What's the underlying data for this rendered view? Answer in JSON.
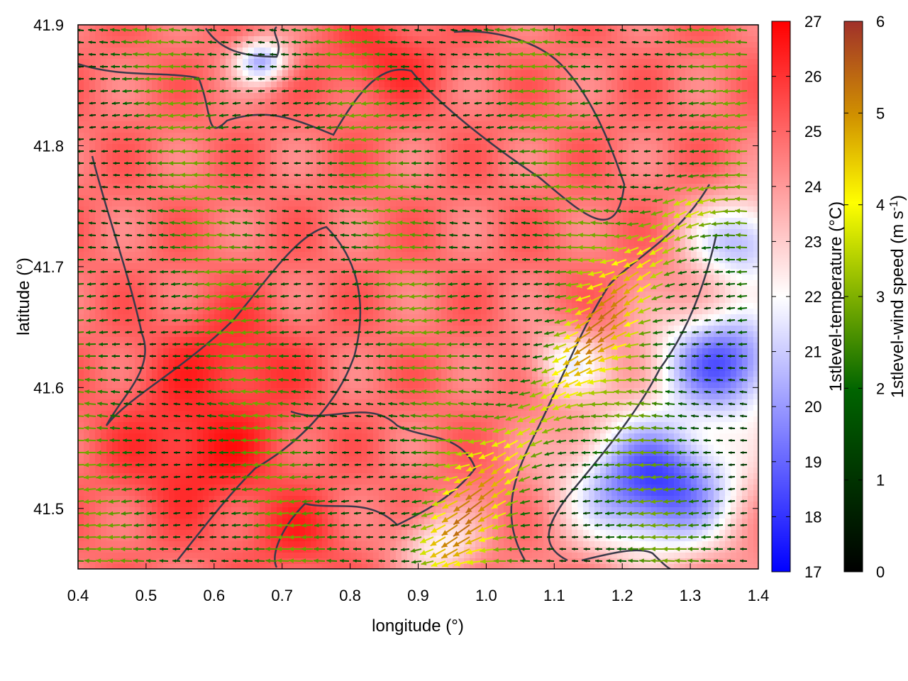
{
  "chart_data": {
    "type": "heatmap",
    "xlabel": "longitude (°)",
    "ylabel": "latitude (°)",
    "xlim": [
      0.4,
      1.4
    ],
    "ylim": [
      41.45,
      41.9
    ],
    "x_ticks": [
      "0.4",
      "0.5",
      "0.6",
      "0.7",
      "0.8",
      "0.9",
      "1.0",
      "1.1",
      "1.2",
      "1.3",
      "1.4"
    ],
    "y_ticks": [
      "41.5",
      "41.6",
      "41.7",
      "41.8",
      "41.9"
    ],
    "temperature_colorbar": {
      "label": "1stlevel-temperature (°C)",
      "range": [
        17,
        27
      ],
      "ticks": [
        "17",
        "18",
        "19",
        "20",
        "21",
        "22",
        "23",
        "24",
        "25",
        "26",
        "27"
      ],
      "colors": [
        "#0000ff",
        "#ffffff",
        "#ff0000"
      ]
    },
    "wind_colorbar": {
      "label_main": "1stlevel-wind speed (m s",
      "label_sup": "-1",
      "label_end": ")",
      "range": [
        0,
        6
      ],
      "ticks": [
        "0",
        "1",
        "2",
        "3",
        "4",
        "5",
        "6"
      ],
      "colors": [
        "#000000",
        "#006400",
        "#7fb000",
        "#ffff00",
        "#d09000",
        "#a0302a"
      ]
    },
    "temperature_regions": [
      {
        "lon": 0.58,
        "lat": 41.55,
        "value": 26.5,
        "spread": 0.12
      },
      {
        "lon": 0.62,
        "lat": 41.62,
        "value": 26.2,
        "spread": 0.1
      },
      {
        "lon": 0.85,
        "lat": 41.87,
        "value": 26.0,
        "spread": 0.08
      },
      {
        "lon": 0.72,
        "lat": 41.48,
        "value": 26.0,
        "spread": 0.07
      },
      {
        "lon": 1.25,
        "lat": 41.52,
        "value": 18.2,
        "spread": 0.12
      },
      {
        "lon": 1.35,
        "lat": 41.62,
        "value": 18.8,
        "spread": 0.1
      },
      {
        "lon": 1.38,
        "lat": 41.72,
        "value": 20.5,
        "spread": 0.08
      },
      {
        "lon": 0.67,
        "lat": 41.87,
        "value": 20.5,
        "spread": 0.04
      },
      {
        "lon": 1.12,
        "lat": 41.62,
        "value": 22.0,
        "spread": 0.06
      },
      {
        "lon": 0.93,
        "lat": 41.47,
        "value": 22.2,
        "spread": 0.06
      }
    ],
    "temperature_background": 24.8,
    "wind_field": {
      "prevailing_direction": "west",
      "high_speed_band": {
        "from": [
          0.95,
          41.47
        ],
        "to": [
          1.3,
          41.75
        ],
        "speed": 4.5
      },
      "background_speed": 2.0
    }
  }
}
